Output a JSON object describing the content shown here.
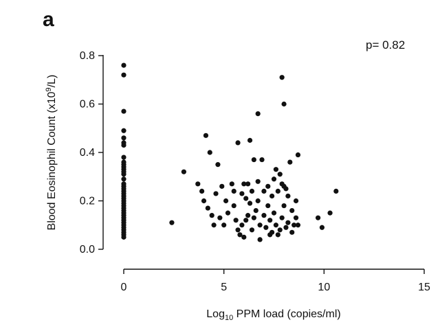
{
  "panel_label": "a",
  "annotation": "p= 0.82",
  "chart_data": {
    "type": "scatter",
    "xlabel_parts": [
      "Log",
      "10",
      " PPM load (copies/ml)"
    ],
    "ylabel_parts": [
      "Blood Eosinophil Count (x10",
      "9",
      "/L)"
    ],
    "xlim": [
      0,
      15
    ],
    "ylim": [
      0,
      0.8
    ],
    "xticks": [
      0,
      5,
      10,
      15
    ],
    "xtick_labels": [
      "0",
      "5",
      "10",
      "15"
    ],
    "yticks": [
      0.0,
      0.2,
      0.4,
      0.6,
      0.8
    ],
    "ytick_labels": [
      "0.0",
      "0.2",
      "0.4",
      "0.6",
      "0.8"
    ],
    "grid": false,
    "point_color": "#111111",
    "points": [
      [
        0,
        0.76
      ],
      [
        0,
        0.72
      ],
      [
        0,
        0.57
      ],
      [
        0,
        0.49
      ],
      [
        0,
        0.46
      ],
      [
        0,
        0.44
      ],
      [
        0,
        0.43
      ],
      [
        0,
        0.38
      ],
      [
        0,
        0.36
      ],
      [
        0,
        0.35
      ],
      [
        0,
        0.34
      ],
      [
        0,
        0.33
      ],
      [
        0,
        0.32
      ],
      [
        0,
        0.31
      ],
      [
        0,
        0.29
      ],
      [
        0,
        0.27
      ],
      [
        0,
        0.26
      ],
      [
        0,
        0.25
      ],
      [
        0,
        0.24
      ],
      [
        0,
        0.23
      ],
      [
        0,
        0.22
      ],
      [
        0,
        0.21
      ],
      [
        0,
        0.2
      ],
      [
        0,
        0.19
      ],
      [
        0,
        0.18
      ],
      [
        0,
        0.17
      ],
      [
        0,
        0.16
      ],
      [
        0,
        0.15
      ],
      [
        0,
        0.14
      ],
      [
        0,
        0.13
      ],
      [
        0,
        0.12
      ],
      [
        0,
        0.11
      ],
      [
        0,
        0.1
      ],
      [
        0,
        0.09
      ],
      [
        0,
        0.08
      ],
      [
        0,
        0.07
      ],
      [
        0,
        0.06
      ],
      [
        0,
        0.05
      ],
      [
        2.4,
        0.11
      ],
      [
        3.0,
        0.32
      ],
      [
        3.7,
        0.27
      ],
      [
        3.9,
        0.24
      ],
      [
        4.0,
        0.2
      ],
      [
        4.1,
        0.47
      ],
      [
        4.2,
        0.17
      ],
      [
        4.3,
        0.4
      ],
      [
        4.4,
        0.14
      ],
      [
        4.5,
        0.1
      ],
      [
        4.6,
        0.23
      ],
      [
        4.7,
        0.35
      ],
      [
        4.8,
        0.13
      ],
      [
        4.9,
        0.26
      ],
      [
        5.0,
        0.1
      ],
      [
        5.1,
        0.2
      ],
      [
        5.2,
        0.15
      ],
      [
        5.4,
        0.27
      ],
      [
        5.5,
        0.24
      ],
      [
        5.5,
        0.18
      ],
      [
        5.6,
        0.12
      ],
      [
        5.7,
        0.08
      ],
      [
        5.7,
        0.44
      ],
      [
        5.8,
        0.06
      ],
      [
        5.9,
        0.23
      ],
      [
        5.9,
        0.1
      ],
      [
        6.0,
        0.05
      ],
      [
        6.0,
        0.27
      ],
      [
        6.1,
        0.12
      ],
      [
        6.1,
        0.21
      ],
      [
        6.2,
        0.14
      ],
      [
        6.2,
        0.27
      ],
      [
        6.3,
        0.45
      ],
      [
        6.3,
        0.19
      ],
      [
        6.4,
        0.08
      ],
      [
        6.4,
        0.24
      ],
      [
        6.5,
        0.37
      ],
      [
        6.5,
        0.13
      ],
      [
        6.6,
        0.16
      ],
      [
        6.7,
        0.56
      ],
      [
        6.7,
        0.28
      ],
      [
        6.7,
        0.2
      ],
      [
        6.8,
        0.1
      ],
      [
        6.8,
        0.04
      ],
      [
        6.9,
        0.37
      ],
      [
        7.0,
        0.14
      ],
      [
        7.0,
        0.24
      ],
      [
        7.1,
        0.09
      ],
      [
        7.2,
        0.18
      ],
      [
        7.2,
        0.26
      ],
      [
        7.3,
        0.06
      ],
      [
        7.3,
        0.12
      ],
      [
        7.4,
        0.07
      ],
      [
        7.4,
        0.22
      ],
      [
        7.5,
        0.29
      ],
      [
        7.5,
        0.15
      ],
      [
        7.6,
        0.33
      ],
      [
        7.6,
        0.1
      ],
      [
        7.7,
        0.06
      ],
      [
        7.7,
        0.24
      ],
      [
        7.8,
        0.31
      ],
      [
        7.8,
        0.08
      ],
      [
        7.9,
        0.71
      ],
      [
        7.9,
        0.27
      ],
      [
        7.9,
        0.13
      ],
      [
        8.0,
        0.6
      ],
      [
        8.0,
        0.26
      ],
      [
        8.0,
        0.18
      ],
      [
        8.1,
        0.25
      ],
      [
        8.1,
        0.09
      ],
      [
        8.2,
        0.22
      ],
      [
        8.2,
        0.11
      ],
      [
        8.3,
        0.36
      ],
      [
        8.4,
        0.16
      ],
      [
        8.4,
        0.07
      ],
      [
        8.5,
        0.1
      ],
      [
        8.6,
        0.2
      ],
      [
        8.6,
        0.13
      ],
      [
        8.7,
        0.39
      ],
      [
        8.7,
        0.1
      ],
      [
        9.7,
        0.13
      ],
      [
        9.9,
        0.09
      ],
      [
        10.3,
        0.15
      ],
      [
        10.6,
        0.24
      ]
    ]
  }
}
